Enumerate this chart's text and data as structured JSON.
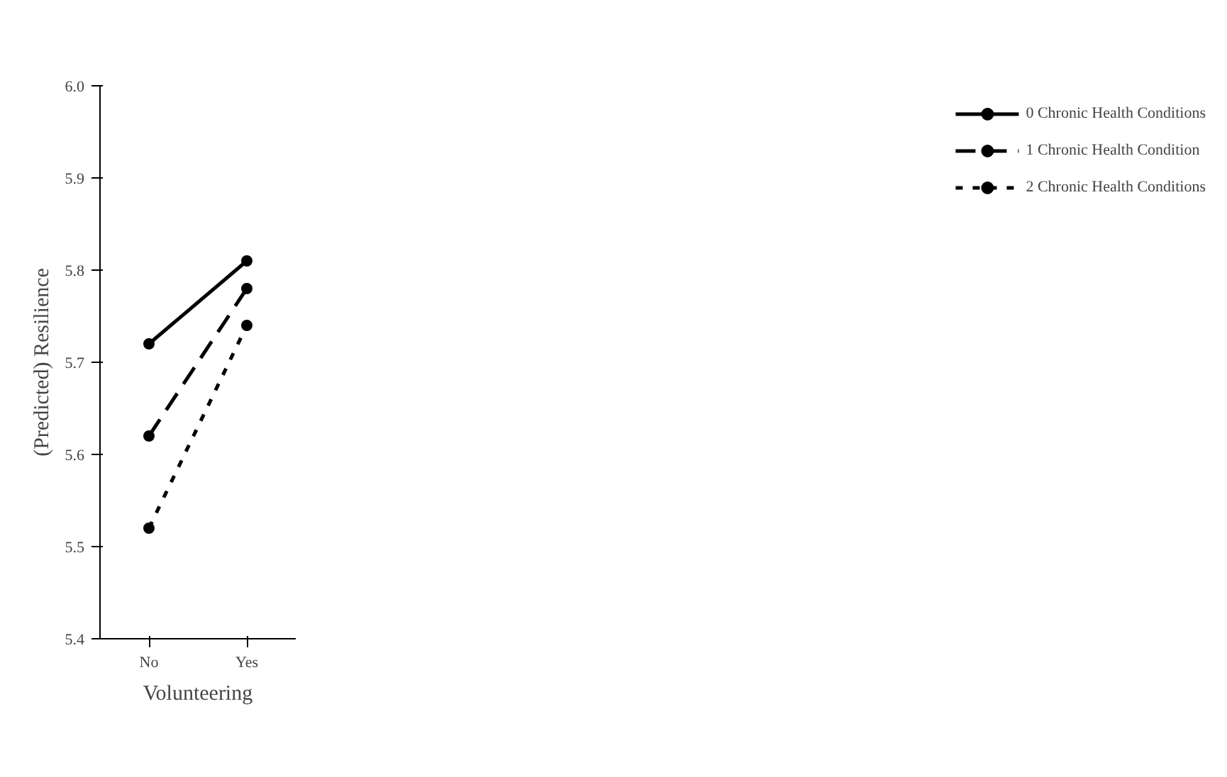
{
  "chart_data": {
    "type": "line",
    "xlabel": "Volunteering",
    "ylabel": "(Predicted) Resilience",
    "categories": [
      "No",
      "Yes"
    ],
    "series": [
      {
        "name": "0 Chronic Health Conditions",
        "color": "#000000",
        "line_style": "solid",
        "values": [
          5.72,
          5.81
        ]
      },
      {
        "name": "1 Chronic Health Condition",
        "color": "#000000",
        "line_style": "dashed",
        "values": [
          5.62,
          5.78
        ]
      },
      {
        "name": "2 Chronic Health Conditions",
        "color": "#000000",
        "line_style": "dotted",
        "values": [
          5.52,
          5.74
        ]
      }
    ],
    "ylim": [
      5.4,
      6.0
    ],
    "yticks": [
      {
        "value": 5.4,
        "label": "5.4"
      },
      {
        "value": 5.5,
        "label": "5.5"
      },
      {
        "value": 5.6,
        "label": "5.6"
      },
      {
        "value": 5.7,
        "label": "5.7"
      },
      {
        "value": 5.8,
        "label": "5.8"
      },
      {
        "value": 5.9,
        "label": "5.9"
      },
      {
        "value": 6.0,
        "label": "6.0"
      }
    ],
    "marker": "circle",
    "grid": false,
    "legend": "top right"
  }
}
